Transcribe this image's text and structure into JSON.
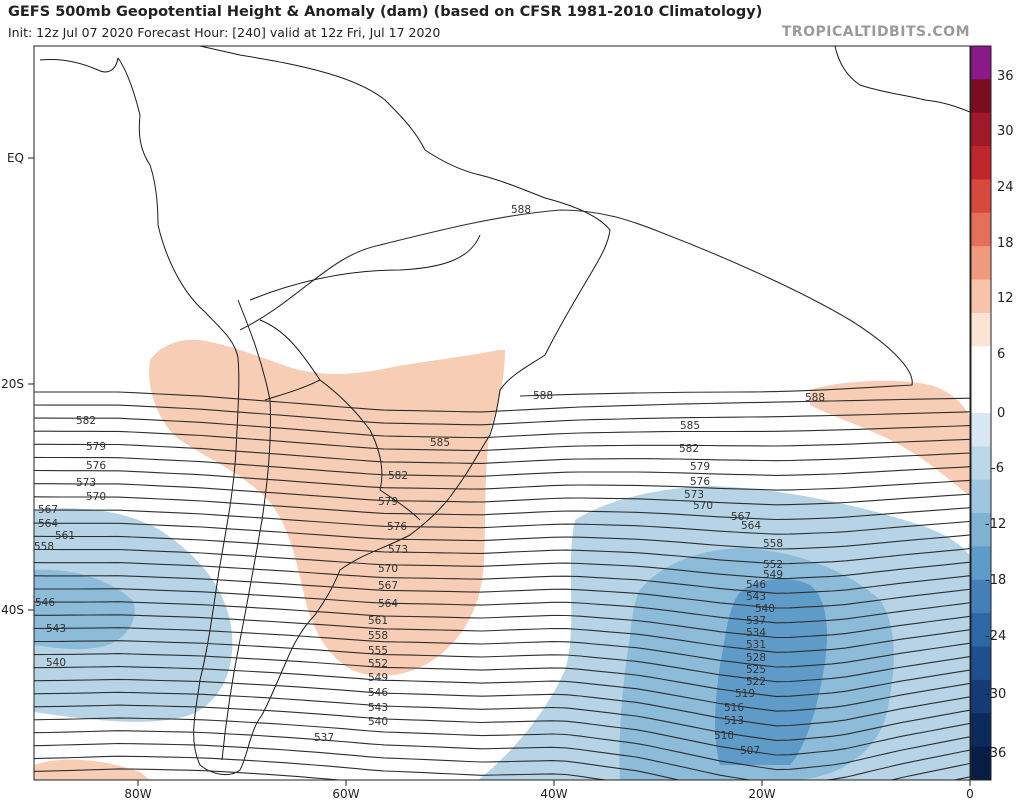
{
  "header": {
    "title": "GEFS 500mb Geopotential Height & Anomaly (dam) (based on CFSR 1981-2010 Climatology)",
    "subtitle": "Init: 12z Jul 07 2020   Forecast Hour: [240]   valid at 12z Fri, Jul 17 2020",
    "brand": "TROPICALTIDBITS.COM"
  },
  "map": {
    "lat_labels": [
      "EQ",
      "20S",
      "40S"
    ],
    "lon_labels": [
      "80W",
      "60W",
      "40W",
      "20W",
      "0"
    ],
    "contour_labels": [
      "588",
      "588",
      "588",
      "585",
      "585",
      "582",
      "582",
      "582",
      "579",
      "579",
      "579",
      "576",
      "576",
      "576",
      "573",
      "573",
      "573",
      "570",
      "570",
      "570",
      "567",
      "567",
      "567",
      "564",
      "564",
      "564",
      "561",
      "561",
      "558",
      "558",
      "558",
      "555",
      "552",
      "552",
      "549",
      "549",
      "546",
      "546",
      "546",
      "543",
      "543",
      "543",
      "540",
      "540",
      "540",
      "537",
      "537",
      "534",
      "531",
      "528",
      "525",
      "522",
      "519",
      "516",
      "513",
      "510",
      "507"
    ]
  },
  "colorbar": {
    "ticks": [
      "36",
      "30",
      "24",
      "18",
      "12",
      "6",
      "0",
      "-6",
      "-12",
      "-18",
      "-24",
      "-30",
      "-36"
    ],
    "colors": [
      "#8a1a8a",
      "#7a0d1f",
      "#9e1a2a",
      "#c0272d",
      "#d64a3e",
      "#e2705a",
      "#ef9a7e",
      "#f7c4ab",
      "#fbe4d6",
      "#ffffff",
      "#ffffff",
      "#d9e8f2",
      "#bcd7e8",
      "#9fc6de",
      "#7fb1d3",
      "#5f9bc8",
      "#447fb7",
      "#2f67a6",
      "#1f4f8f",
      "#153a76",
      "#0d2a5c",
      "#081d45"
    ]
  }
}
